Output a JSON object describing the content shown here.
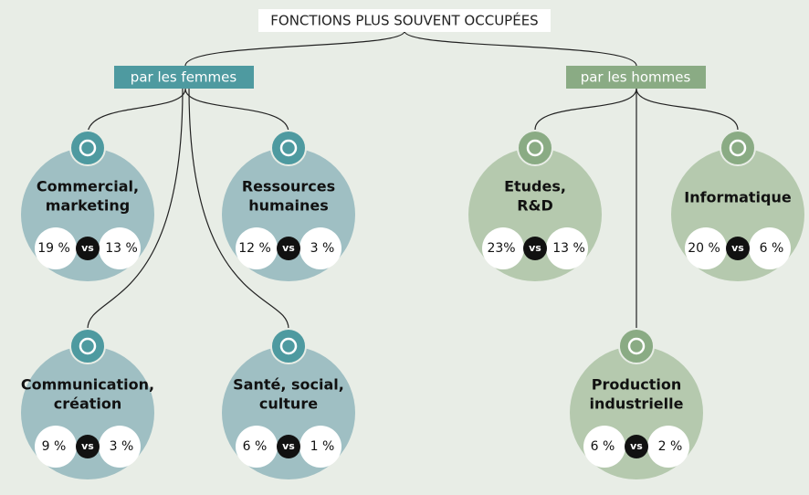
{
  "header": {
    "title": "FONCTIONS PLUS SOUVENT OCCUPÉES"
  },
  "vs_label": "vs",
  "groups": [
    {
      "label": "par les femmes",
      "nodes": [
        {
          "label": [
            "Commercial,",
            "marketing"
          ],
          "women": "19 %",
          "men": "13 %"
        },
        {
          "label": [
            "Ressources",
            "humaines"
          ],
          "women": "12 %",
          "men": "3 %"
        },
        {
          "label": [
            "Communication,",
            "création"
          ],
          "women": "9 %",
          "men": "3 %"
        },
        {
          "label": [
            "Santé, social,",
            "culture"
          ],
          "women": "6 %",
          "men": "1 %"
        }
      ]
    },
    {
      "label": "par les hommes",
      "nodes": [
        {
          "label": [
            "Etudes,",
            "R&D"
          ],
          "women": "23%",
          "men": "13 %"
        },
        {
          "label": [
            "Informatique"
          ],
          "women": "20 %",
          "men": "6 %"
        },
        {
          "label": [
            "Production",
            "industrielle"
          ],
          "women": "6 %",
          "men": "2 %"
        }
      ]
    }
  ]
}
